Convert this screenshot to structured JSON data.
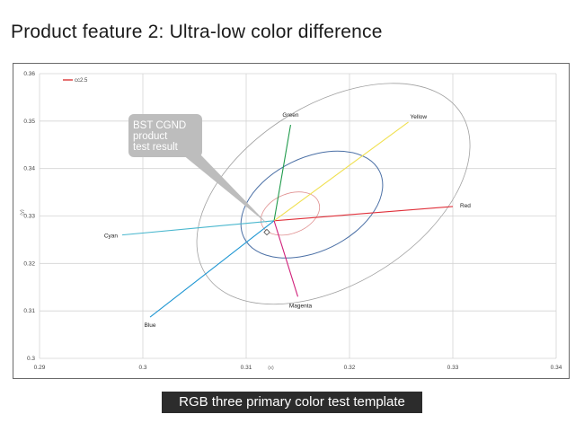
{
  "page": {
    "title": "Product feature 2: Ultra-low color difference",
    "caption": "RGB three primary color test template"
  },
  "chart_data": {
    "type": "scatter",
    "title": "",
    "xlabel": "(x)",
    "ylabel": "(y)",
    "xlim": [
      0.29,
      0.34
    ],
    "ylim": [
      0.3,
      0.36
    ],
    "xticks": [
      "0.29",
      "0.3",
      "0.31",
      "0.32",
      "0.33",
      "0.34"
    ],
    "yticks": [
      "0.3",
      "0.31",
      "0.32",
      "0.33",
      "0.34",
      "0.35",
      "0.36"
    ],
    "grid": true,
    "legend": {
      "position": "top-left",
      "entries": [
        {
          "name": "cc2.5",
          "color": "#e05050"
        }
      ]
    },
    "white_point": {
      "x": 0.3127,
      "y": 0.329
    },
    "measured_point": {
      "x": 0.312,
      "y": 0.3266
    },
    "rays": [
      {
        "name": "Red",
        "color": "#e0303a",
        "end": {
          "x": 0.33,
          "y": 0.332
        }
      },
      {
        "name": "Green",
        "color": "#1e9a4a",
        "end": {
          "x": 0.3143,
          "y": 0.3492
        }
      },
      {
        "name": "Yellow",
        "color": "#f0e050",
        "end": {
          "x": 0.3257,
          "y": 0.3498
        }
      },
      {
        "name": "Cyan",
        "color": "#49b7ce",
        "end": {
          "x": 0.298,
          "y": 0.326
        }
      },
      {
        "name": "Blue",
        "color": "#1e96d2",
        "end": {
          "x": 0.3007,
          "y": 0.3087
        }
      },
      {
        "name": "Magenta",
        "color": "#d0207a",
        "end": {
          "x": 0.315,
          "y": 0.313
        }
      }
    ],
    "ellipses": [
      {
        "name": "cc2.5",
        "color": "#e09090"
      },
      {
        "color": "#4a6fa5"
      },
      {
        "color": "#a0a0a0"
      }
    ],
    "annotation": {
      "lines": [
        "BST CGND",
        "product",
        "test result"
      ],
      "color": "#bdbdbd"
    }
  }
}
